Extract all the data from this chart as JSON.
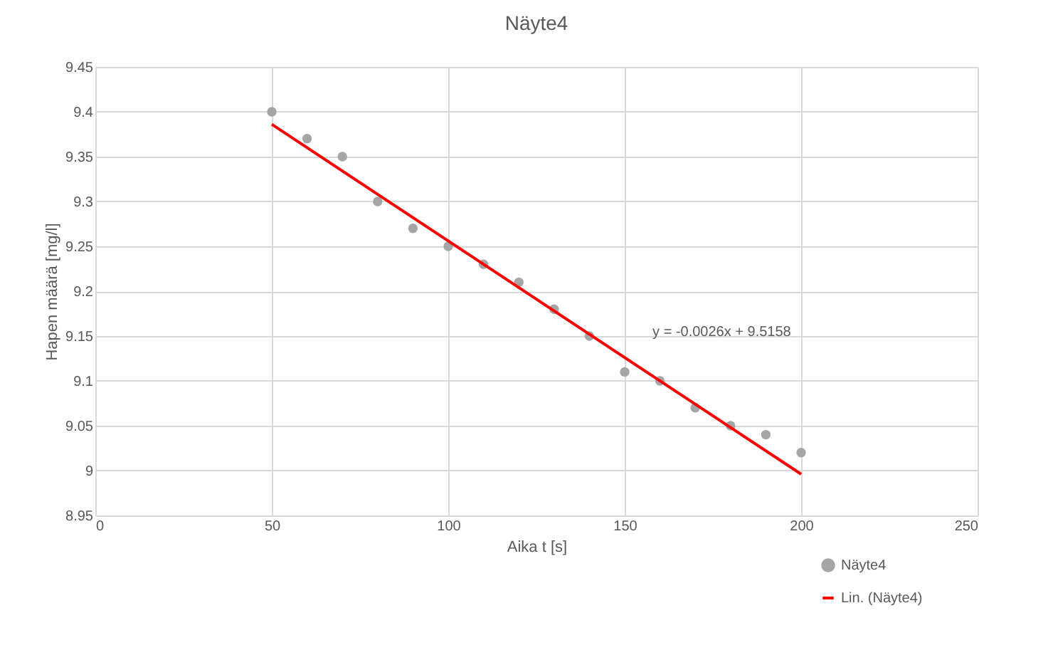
{
  "chart_data": {
    "type": "scatter",
    "title": "Näyte4",
    "xlabel": "Aika t [s]",
    "ylabel": "Hapen määrä [mg/l]",
    "x": [
      50,
      60,
      70,
      80,
      90,
      100,
      110,
      120,
      130,
      140,
      150,
      160,
      170,
      180,
      190,
      200
    ],
    "series": [
      {
        "name": "Näyte4",
        "color": "#a5a5a5",
        "marker": "circle",
        "values": [
          9.4,
          9.37,
          9.35,
          9.3,
          9.27,
          9.25,
          9.23,
          9.21,
          9.18,
          9.15,
          9.11,
          9.1,
          9.07,
          9.05,
          9.04,
          9.02
        ]
      },
      {
        "name": "Lin. (Näyte4)",
        "color": "#ff0000",
        "type": "line",
        "marker": "none",
        "x": [
          50,
          200
        ],
        "values": [
          9.386,
          8.996
        ]
      }
    ],
    "xlim": [
      0,
      250
    ],
    "xticks": [
      0,
      50,
      100,
      150,
      200,
      250
    ],
    "ylim": [
      8.95,
      9.45
    ],
    "yticks": [
      8.95,
      9,
      9.05,
      9.1,
      9.15,
      9.2,
      9.25,
      9.3,
      9.35,
      9.4,
      9.45
    ],
    "grid": true,
    "legend": "bottom right",
    "annotations": [
      "y = -0.0026x + 9.5158"
    ]
  }
}
